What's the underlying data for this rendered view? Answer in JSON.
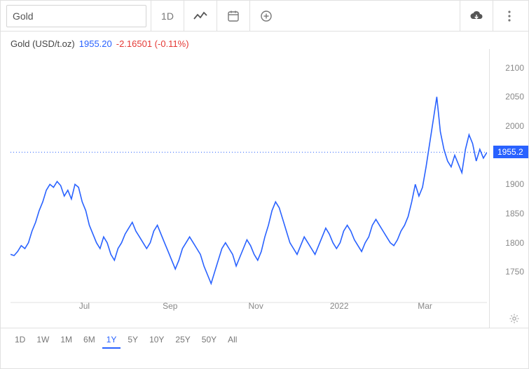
{
  "toolbar": {
    "search_value": "Gold",
    "interval_label": "1D"
  },
  "info": {
    "label": "Gold (USD/t.oz)",
    "price": "1955.20",
    "change": "-2.16501 (-0.11%)"
  },
  "chart": {
    "type": "line",
    "line_color": "#2962ff",
    "line_width": 1.6,
    "background_color": "#ffffff",
    "axis_color": "#888888",
    "border_color": "#e0e0e0",
    "y_min": 1700,
    "y_max": 2120,
    "y_ticks": [
      1750,
      1800,
      1850,
      1900,
      1950,
      2000,
      2050,
      2100
    ],
    "x_ticks": [
      {
        "t": 0.155,
        "label": "Jul"
      },
      {
        "t": 0.335,
        "label": "Sep"
      },
      {
        "t": 0.515,
        "label": "Nov"
      },
      {
        "t": 0.69,
        "label": "2022"
      },
      {
        "t": 0.87,
        "label": "Mar"
      }
    ],
    "current_price": 1955.2,
    "current_price_label": "1955.2",
    "series": [
      1780,
      1778,
      1785,
      1795,
      1790,
      1800,
      1820,
      1835,
      1855,
      1870,
      1890,
      1900,
      1895,
      1905,
      1898,
      1880,
      1890,
      1875,
      1900,
      1895,
      1870,
      1855,
      1830,
      1815,
      1800,
      1790,
      1810,
      1800,
      1780,
      1770,
      1790,
      1800,
      1815,
      1825,
      1835,
      1820,
      1810,
      1800,
      1790,
      1800,
      1820,
      1830,
      1815,
      1800,
      1785,
      1770,
      1755,
      1770,
      1790,
      1800,
      1810,
      1800,
      1790,
      1780,
      1760,
      1745,
      1730,
      1750,
      1770,
      1790,
      1800,
      1790,
      1780,
      1760,
      1775,
      1790,
      1805,
      1795,
      1780,
      1770,
      1785,
      1810,
      1830,
      1855,
      1870,
      1860,
      1840,
      1820,
      1800,
      1790,
      1780,
      1795,
      1810,
      1800,
      1790,
      1780,
      1795,
      1810,
      1825,
      1815,
      1800,
      1790,
      1800,
      1820,
      1830,
      1820,
      1805,
      1795,
      1785,
      1800,
      1810,
      1830,
      1840,
      1830,
      1820,
      1810,
      1800,
      1795,
      1805,
      1820,
      1830,
      1845,
      1870,
      1900,
      1880,
      1895,
      1930,
      1970,
      2010,
      2050,
      1990,
      1960,
      1940,
      1930,
      1950,
      1935,
      1920,
      1960,
      1985,
      1970,
      1940,
      1960,
      1945,
      1955
    ]
  },
  "ranges": {
    "items": [
      "1D",
      "1W",
      "1M",
      "6M",
      "1Y",
      "5Y",
      "10Y",
      "25Y",
      "50Y",
      "All"
    ],
    "active_index": 4
  }
}
